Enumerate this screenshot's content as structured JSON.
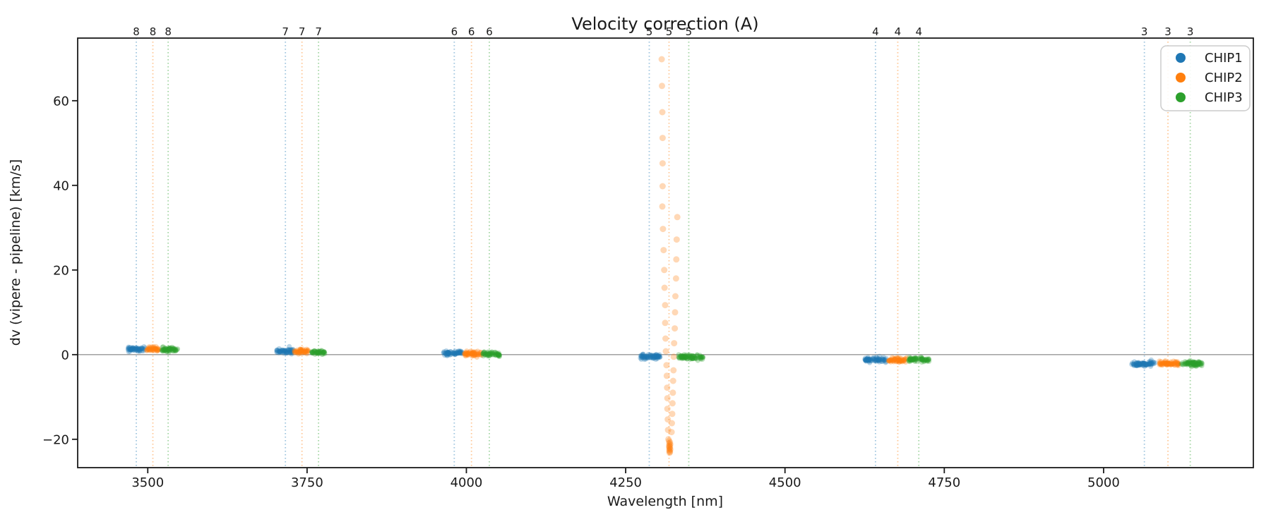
{
  "figure": {
    "title": "Velocity correction (A)",
    "xlabel": "Wavelength [nm]",
    "ylabel": "dv (vipere - pipeline) [km/s]"
  },
  "legend": {
    "position": "upper-right",
    "items": [
      {
        "label": "CHIP1",
        "color": "#1f77b4"
      },
      {
        "label": "CHIP2",
        "color": "#ff7f0e"
      },
      {
        "label": "CHIP3",
        "color": "#2ca02c"
      }
    ]
  },
  "chart_data": {
    "type": "scatter",
    "title": "Velocity correction (A)",
    "xlabel": "Wavelength [nm]",
    "ylabel": "dv (vipere - pipeline) [km/s]",
    "xlim": [
      3390,
      5235
    ],
    "ylim": [
      -26.7,
      74.8
    ],
    "xticks": [
      3500,
      3750,
      4000,
      4250,
      4500,
      4750,
      5000
    ],
    "yticks": [
      -20,
      0,
      20,
      40,
      60
    ],
    "grid": false,
    "legend_position": "upper right",
    "zero_line": {
      "y": 0,
      "color": "#808080"
    },
    "series": [
      {
        "name": "CHIP1",
        "color": "#1f77b4"
      },
      {
        "name": "CHIP2",
        "color": "#ff7f0e"
      },
      {
        "name": "CHIP3",
        "color": "#2ca02c"
      }
    ],
    "order_markers": {
      "style": "vertical dotted lines with order number above top axis, colored per chip",
      "groups": [
        {
          "order": 8,
          "lines": [
            {
              "chip": "CHIP1",
              "nm": 3482
            },
            {
              "chip": "CHIP2",
              "nm": 3508
            },
            {
              "chip": "CHIP3",
              "nm": 3532
            }
          ]
        },
        {
          "order": 7,
          "lines": [
            {
              "chip": "CHIP1",
              "nm": 3716
            },
            {
              "chip": "CHIP2",
              "nm": 3742
            },
            {
              "chip": "CHIP3",
              "nm": 3768
            }
          ]
        },
        {
          "order": 6,
          "lines": [
            {
              "chip": "CHIP1",
              "nm": 3981
            },
            {
              "chip": "CHIP2",
              "nm": 4008
            },
            {
              "chip": "CHIP3",
              "nm": 4036
            }
          ]
        },
        {
          "order": 5,
          "lines": [
            {
              "chip": "CHIP1",
              "nm": 4287
            },
            {
              "chip": "CHIP2",
              "nm": 4318
            },
            {
              "chip": "CHIP3",
              "nm": 4349
            }
          ]
        },
        {
          "order": 4,
          "lines": [
            {
              "chip": "CHIP1",
              "nm": 4642
            },
            {
              "chip": "CHIP2",
              "nm": 4677
            },
            {
              "chip": "CHIP3",
              "nm": 4710
            }
          ]
        },
        {
          "order": 3,
          "lines": [
            {
              "chip": "CHIP1",
              "nm": 5064
            },
            {
              "chip": "CHIP2",
              "nm": 5101
            },
            {
              "chip": "CHIP3",
              "nm": 5136
            }
          ]
        }
      ]
    },
    "clusters": [
      {
        "chip": "CHIP1",
        "order": 8,
        "nm_range": [
          3469,
          3496
        ],
        "dv": 1.3
      },
      {
        "chip": "CHIP2",
        "order": 8,
        "nm_range": [
          3498,
          3518
        ],
        "dv": 1.3
      },
      {
        "chip": "CHIP3",
        "order": 8,
        "nm_range": [
          3521,
          3547
        ],
        "dv": 1.2
      },
      {
        "chip": "CHIP1",
        "order": 7,
        "nm_range": [
          3702,
          3728
        ],
        "dv": 0.8
      },
      {
        "chip": "CHIP2",
        "order": 7,
        "nm_range": [
          3730,
          3753
        ],
        "dv": 0.8
      },
      {
        "chip": "CHIP3",
        "order": 7,
        "nm_range": [
          3757,
          3778
        ],
        "dv": 0.6
      },
      {
        "chip": "CHIP1",
        "order": 6,
        "nm_range": [
          3964,
          3994
        ],
        "dv": 0.4
      },
      {
        "chip": "CHIP2",
        "order": 6,
        "nm_range": [
          3996,
          4024
        ],
        "dv": 0.2
      },
      {
        "chip": "CHIP3",
        "order": 6,
        "nm_range": [
          4026,
          4052
        ],
        "dv": 0.1
      },
      {
        "chip": "CHIP1",
        "order": 5,
        "nm_range": [
          4271,
          4304
        ],
        "dv": -0.5
      },
      {
        "chip": "CHIP3",
        "order": 5,
        "nm_range": [
          4333,
          4372
        ],
        "dv": -0.6
      },
      {
        "chip": "CHIP1",
        "order": 4,
        "nm_range": [
          4625,
          4659
        ],
        "dv": -1.2
      },
      {
        "chip": "CHIP2",
        "order": 4,
        "nm_range": [
          4662,
          4691
        ],
        "dv": -1.3
      },
      {
        "chip": "CHIP3",
        "order": 4,
        "nm_range": [
          4694,
          4726
        ],
        "dv": -1.2
      },
      {
        "chip": "CHIP1",
        "order": 3,
        "nm_range": [
          5044,
          5081
        ],
        "dv": -2.2
      },
      {
        "chip": "CHIP2",
        "order": 3,
        "nm_range": [
          5086,
          5119
        ],
        "dv": -2.1
      },
      {
        "chip": "CHIP3",
        "order": 3,
        "nm_range": [
          5121,
          5155
        ],
        "dv": -2.1
      }
    ],
    "outliers": {
      "chip": "CHIP2",
      "order": 5,
      "points": [
        [
          4306.5,
          69.8
        ],
        [
          4307,
          63.5
        ],
        [
          4307.5,
          57.3
        ],
        [
          4308,
          51.2
        ],
        [
          4308,
          45.2
        ],
        [
          4308,
          39.8
        ],
        [
          4307.5,
          35.0
        ],
        [
          4331,
          32.5
        ],
        [
          4308.5,
          29.7
        ],
        [
          4330,
          27.2
        ],
        [
          4309.5,
          24.7
        ],
        [
          4329.5,
          22.5
        ],
        [
          4310.5,
          20.0
        ],
        [
          4329,
          18.0
        ],
        [
          4311,
          15.8
        ],
        [
          4328,
          13.8
        ],
        [
          4312,
          11.7
        ],
        [
          4327.5,
          10.0
        ],
        [
          4312,
          7.5
        ],
        [
          4327,
          6.2
        ],
        [
          4312.5,
          3.8
        ],
        [
          4326,
          2.7
        ],
        [
          4313,
          0.8
        ],
        [
          4325.5,
          -0.5
        ],
        [
          4314,
          -2.5
        ],
        [
          4325,
          -3.7
        ],
        [
          4314.5,
          -5.0
        ],
        [
          4324.5,
          -6.2
        ],
        [
          4315,
          -7.8
        ],
        [
          4324,
          -9.0
        ],
        [
          4315.5,
          -10.3
        ],
        [
          4323.5,
          -11.5
        ],
        [
          4315.5,
          -12.8
        ],
        [
          4323,
          -14.0
        ],
        [
          4316,
          -15.3
        ],
        [
          4322.5,
          -16.2
        ],
        [
          4316.5,
          -17.8
        ],
        [
          4322,
          -18.3
        ],
        [
          4317,
          -20.0
        ],
        [
          4318,
          -20.4
        ],
        [
          4319.5,
          -20.7
        ],
        [
          4318.5,
          -21.0
        ],
        [
          4320,
          -21.2
        ],
        [
          4319,
          -21.4
        ],
        [
          4318,
          -21.6
        ],
        [
          4319.5,
          -21.8
        ],
        [
          4318.5,
          -22.0
        ],
        [
          4319,
          -22.2
        ],
        [
          4320,
          -22.4
        ],
        [
          4318.5,
          -22.6
        ],
        [
          4319,
          -22.8
        ],
        [
          4319.5,
          -23.0
        ],
        [
          4318.8,
          -23.2
        ]
      ]
    }
  }
}
